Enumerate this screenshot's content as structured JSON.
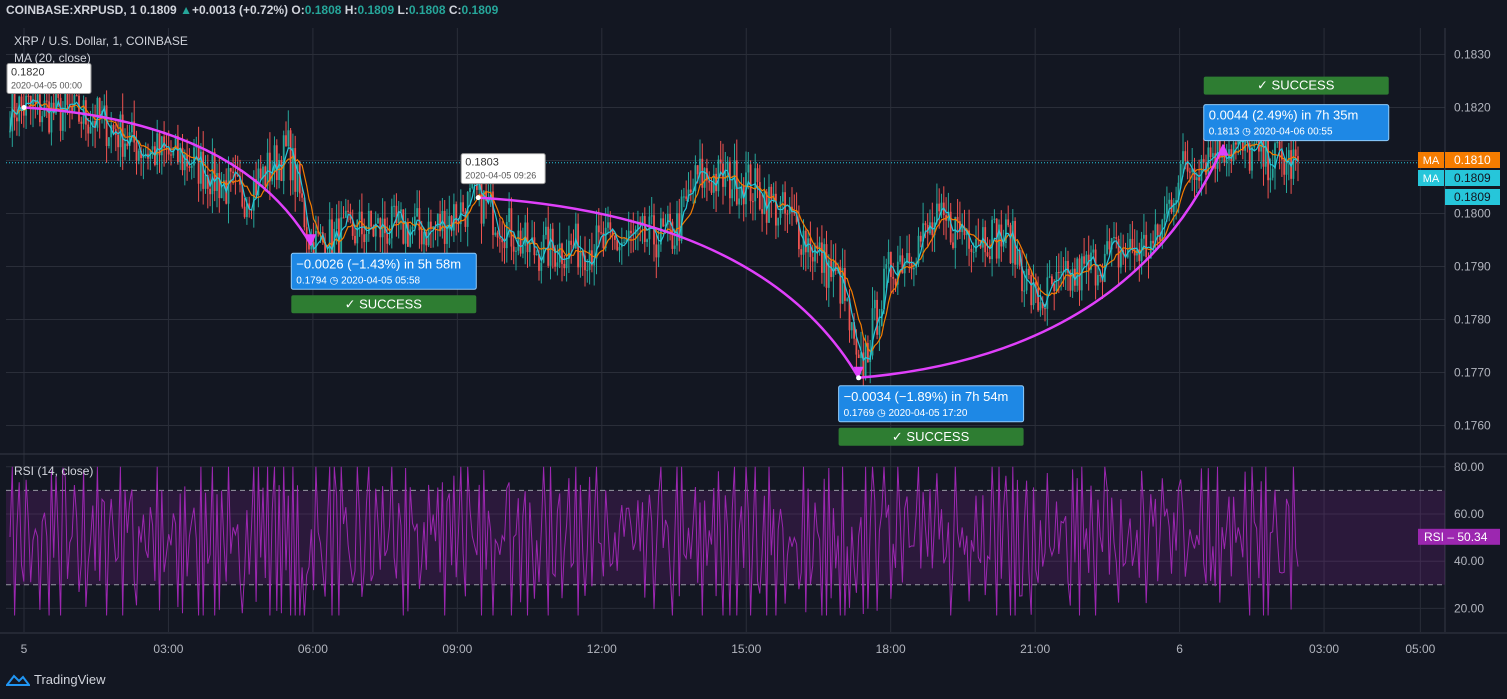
{
  "header": {
    "symbol": "COINBASE:XRPUSD, 1",
    "last": "0.1809",
    "arrow": "▲",
    "change": "+0.0013 (+0.72%)",
    "o_label": "O:",
    "o": "0.1808",
    "h_label": "H:",
    "h": "0.1809",
    "l_label": "L:",
    "l": "0.1808",
    "c_label": "C:",
    "c": "0.1809"
  },
  "legend": {
    "title": "XRP / U.S. Dollar, 1, COINBASE",
    "ma": "MA (20, close)",
    "rsi": "RSI (14, close)"
  },
  "branding": {
    "name": "TradingView"
  },
  "colors": {
    "background": "#131722",
    "up": "#26a69a",
    "down": "#ef5350",
    "ma_orange": "#f57c00",
    "ma_teal": "#26c6da",
    "rsi": "#9c27b0",
    "arrow": "#e040fb",
    "label_blue": "#1e88e5",
    "success_green": "#2e7d32"
  },
  "chart_data": {
    "type": "candlestick",
    "title": "XRP / U.S. Dollar, 1, COINBASE",
    "x_ticks": [
      "5",
      "03:00",
      "06:00",
      "09:00",
      "12:00",
      "15:00",
      "18:00",
      "21:00",
      "6",
      "03:00",
      "05:00"
    ],
    "price_ticks": [
      "0.1830",
      "0.1820",
      "0.1810",
      "0.1800",
      "0.1790",
      "0.1780",
      "0.1770",
      "0.1760"
    ],
    "ylim": [
      0.1755,
      0.1835
    ],
    "price_path": [
      {
        "t": "2020-04-05 00:00",
        "p": 0.182
      },
      {
        "t": "2020-04-05 01:30",
        "p": 0.1818
      },
      {
        "t": "2020-04-05 02:30",
        "p": 0.1812
      },
      {
        "t": "2020-04-05 03:30",
        "p": 0.181
      },
      {
        "t": "2020-04-05 04:30",
        "p": 0.1803
      },
      {
        "t": "2020-04-05 05:30",
        "p": 0.1812
      },
      {
        "t": "2020-04-05 05:58",
        "p": 0.1794
      },
      {
        "t": "2020-04-05 07:00",
        "p": 0.1797
      },
      {
        "t": "2020-04-05 08:30",
        "p": 0.1797
      },
      {
        "t": "2020-04-05 09:26",
        "p": 0.1803
      },
      {
        "t": "2020-04-05 10:30",
        "p": 0.1793
      },
      {
        "t": "2020-04-05 12:00",
        "p": 0.1794
      },
      {
        "t": "2020-04-05 13:30",
        "p": 0.1796
      },
      {
        "t": "2020-04-05 14:00",
        "p": 0.1807
      },
      {
        "t": "2020-04-05 15:00",
        "p": 0.1806
      },
      {
        "t": "2020-04-05 16:00",
        "p": 0.1798
      },
      {
        "t": "2020-04-05 17:00",
        "p": 0.1786
      },
      {
        "t": "2020-04-05 17:20",
        "p": 0.1769
      },
      {
        "t": "2020-04-05 18:00",
        "p": 0.179
      },
      {
        "t": "2020-04-05 19:00",
        "p": 0.1798
      },
      {
        "t": "2020-04-05 20:30",
        "p": 0.1795
      },
      {
        "t": "2020-04-05 21:00",
        "p": 0.1783
      },
      {
        "t": "2020-04-05 22:30",
        "p": 0.1792
      },
      {
        "t": "2020-04-05 23:30",
        "p": 0.1794
      },
      {
        "t": "2020-04-06 00:00",
        "p": 0.1808
      },
      {
        "t": "2020-04-06 00:55",
        "p": 0.1813
      },
      {
        "t": "2020-04-06 02:00",
        "p": 0.181
      },
      {
        "t": "2020-04-06 02:30",
        "p": 0.1809
      }
    ],
    "price_badges": [
      {
        "label": "MA",
        "value": "0.1810",
        "color": "#f57c00"
      },
      {
        "label": "MA",
        "value": "0.1809",
        "color": "#26c6da"
      },
      {
        "label": "",
        "value": "0.1809",
        "color": "#26c6da"
      }
    ],
    "pivots": [
      {
        "price": "0.1820",
        "time": "2020-04-05 00:00"
      },
      {
        "price": "0.1803",
        "time": "2020-04-05 09:26"
      }
    ],
    "projections": [
      {
        "text": "−0.0026 (−1.43%) in 5h 58m",
        "price": "0.1794",
        "time": "2020-04-05",
        "clock": "05:58",
        "status": "✓ SUCCESS"
      },
      {
        "text": "−0.0034 (−1.89%) in 7h 54m",
        "price": "0.1769",
        "time": "2020-04-05",
        "clock": "17:20",
        "status": "✓ SUCCESS"
      },
      {
        "text": "0.0044 (2.49%) in 7h 35m",
        "price": "0.1813",
        "time": "2020-04-06",
        "clock": "00:55",
        "status": "✓ SUCCESS"
      }
    ],
    "rsi": {
      "ticks": [
        "80.00",
        "60.00",
        "40.00",
        "20.00"
      ],
      "ylim": [
        10,
        85
      ],
      "bands": [
        30,
        70
      ],
      "value": "50.34",
      "label": "RSI"
    }
  }
}
